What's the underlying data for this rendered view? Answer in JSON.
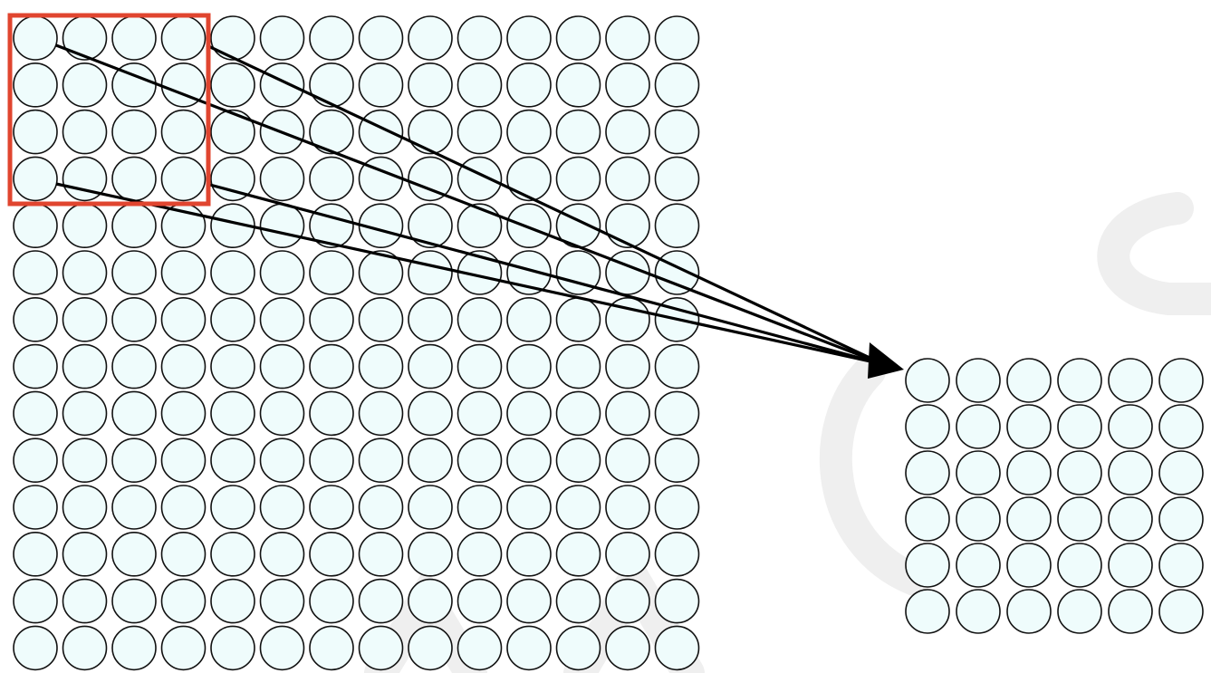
{
  "diagram": {
    "input_layer": {
      "rows": 14,
      "cols": 14
    },
    "receptive_field": {
      "rows": 4,
      "cols": 4
    },
    "output_layer": {
      "rows": 6,
      "cols": 6
    },
    "colors": {
      "neuron_fill": "#effcfc",
      "neuron_stroke": "#111111",
      "field_box": "#e0452f",
      "arrow": "#000000",
      "background": "#ffffff",
      "watermark": "#efefef"
    }
  }
}
